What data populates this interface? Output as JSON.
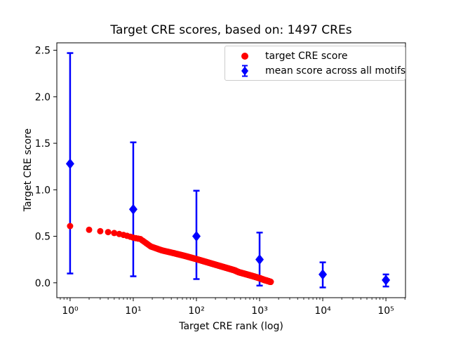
{
  "figure": {
    "title": "Target CRE scores, based on: 1497 CREs",
    "xlabel": "Target CRE rank (log)",
    "ylabel": "Target CRE score"
  },
  "legend": {
    "items": [
      {
        "label": "target CRE score",
        "marker": "circle",
        "color": "#ff0000"
      },
      {
        "label": "mean score across all motifs",
        "marker": "diamond-errorbar",
        "color": "#0000ff"
      }
    ]
  },
  "chart_data": {
    "type": "scatter",
    "title": "Target CRE scores, based on: 1497 CREs",
    "xlabel": "Target CRE rank (log)",
    "ylabel": "Target CRE score",
    "x_scale": "log",
    "xlim_log10": [
      -0.21,
      5.31
    ],
    "ylim": [
      -0.16,
      2.58
    ],
    "grid": false,
    "legend_position": "upper right",
    "x_ticks": [
      {
        "v": 1,
        "label": "10⁰"
      },
      {
        "v": 10,
        "label": "10¹"
      },
      {
        "v": 100,
        "label": "10²"
      },
      {
        "v": 1000,
        "label": "10³"
      },
      {
        "v": 10000,
        "label": "10⁴"
      },
      {
        "v": 100000,
        "label": "10⁵"
      }
    ],
    "y_ticks": [
      {
        "v": 0.0,
        "label": "0.0"
      },
      {
        "v": 0.5,
        "label": "0.5"
      },
      {
        "v": 1.0,
        "label": "1.0"
      },
      {
        "v": 1.5,
        "label": "1.5"
      },
      {
        "v": 2.0,
        "label": "2.0"
      },
      {
        "v": 2.5,
        "label": "2.5"
      }
    ],
    "series": [
      {
        "name": "target CRE score",
        "marker": "circle",
        "color": "#ff0000",
        "n_points": 1497,
        "interpolation": "scores for ranks 1..1497 follow piecewise-linear curve in log10(rank) through anchor_points",
        "anchor_points": [
          [
            1,
            0.61
          ],
          [
            2,
            0.57
          ],
          [
            3,
            0.555
          ],
          [
            4,
            0.545
          ],
          [
            5,
            0.535
          ],
          [
            6,
            0.525
          ],
          [
            7,
            0.515
          ],
          [
            8,
            0.505
          ],
          [
            9,
            0.495
          ],
          [
            10,
            0.485
          ],
          [
            13,
            0.47
          ],
          [
            15,
            0.44
          ],
          [
            19,
            0.39
          ],
          [
            28,
            0.35
          ],
          [
            43,
            0.32
          ],
          [
            65,
            0.29
          ],
          [
            100,
            0.255
          ],
          [
            150,
            0.22
          ],
          [
            200,
            0.195
          ],
          [
            300,
            0.16
          ],
          [
            400,
            0.135
          ],
          [
            465,
            0.115
          ],
          [
            630,
            0.09
          ],
          [
            800,
            0.07
          ],
          [
            1000,
            0.05
          ],
          [
            1200,
            0.03
          ],
          [
            1350,
            0.02
          ],
          [
            1497,
            0.01
          ]
        ]
      },
      {
        "name": "mean score across all motifs",
        "marker": "diamond",
        "color": "#0000ff",
        "points": [
          {
            "rank": 1,
            "mean": 1.28,
            "lo": 0.1,
            "hi": 2.47
          },
          {
            "rank": 10,
            "mean": 0.79,
            "lo": 0.07,
            "hi": 1.51
          },
          {
            "rank": 100,
            "mean": 0.5,
            "lo": 0.04,
            "hi": 0.99
          },
          {
            "rank": 1000,
            "mean": 0.25,
            "lo": -0.03,
            "hi": 0.54
          },
          {
            "rank": 10000,
            "mean": 0.09,
            "lo": -0.05,
            "hi": 0.22
          },
          {
            "rank": 100000,
            "mean": 0.03,
            "lo": -0.04,
            "hi": 0.09
          }
        ]
      }
    ]
  }
}
